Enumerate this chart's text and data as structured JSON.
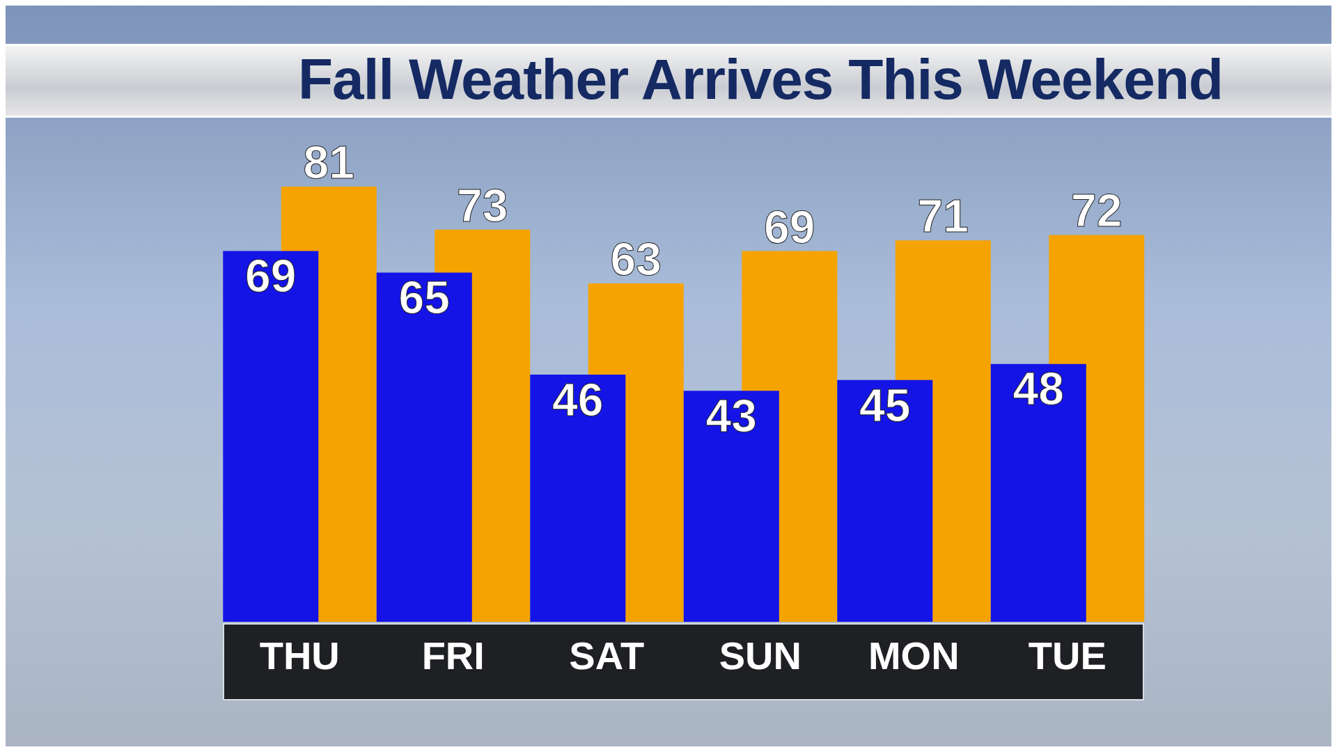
{
  "chart_data": {
    "type": "bar",
    "title": "Fall Weather Arrives This Weekend",
    "categories": [
      "THU",
      "FRI",
      "SAT",
      "SUN",
      "MON",
      "TUE"
    ],
    "series": [
      {
        "color": "#1414e6",
        "values": [
          69,
          65,
          46,
          43,
          45,
          48
        ]
      },
      {
        "color": "#f5a300",
        "values": [
          81,
          73,
          63,
          69,
          71,
          72
        ]
      }
    ],
    "data_labels": true
  }
}
